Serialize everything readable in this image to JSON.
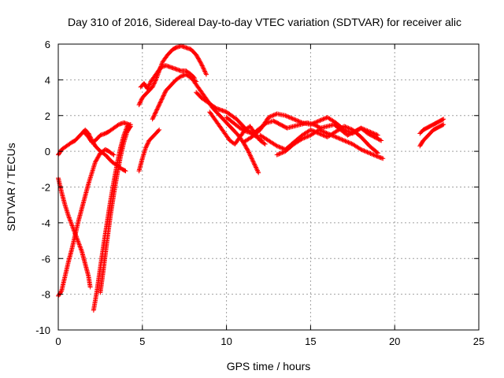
{
  "chart_data": {
    "type": "scatter",
    "title": "Day 310 of 2016, Sidereal Day-to-day VTEC variation (SDTVAR) for receiver alic",
    "xlabel": "GPS time / hours",
    "ylabel": "SDTVAR / TECUs",
    "xlim": [
      0,
      25
    ],
    "ylim": [
      -10,
      6
    ],
    "xticks": [
      "0",
      "5",
      "10",
      "15",
      "20",
      "25"
    ],
    "yticks": [
      "-10",
      "-8",
      "-6",
      "-4",
      "-2",
      "0",
      "2",
      "4",
      "6"
    ],
    "grid": true,
    "legend": "none",
    "marker": "plus",
    "color": "#ff0000",
    "series": [
      {
        "x": [
          0,
          0.2,
          0.5,
          0.8,
          1.0,
          1.3,
          1.6,
          1.8,
          2.0,
          2.2,
          2.5,
          2.8,
          3.0,
          3.2,
          3.5,
          3.8,
          4.0
        ],
        "y": [
          -0.2,
          0.1,
          0.3,
          0.5,
          0.6,
          0.9,
          1.2,
          1.0,
          0.6,
          0.3,
          0.0,
          -0.2,
          -0.4,
          -0.6,
          -0.8,
          -1.0,
          -1.1
        ]
      },
      {
        "x": [
          1.5,
          1.8,
          2.0,
          2.2,
          2.5,
          2.8,
          3.0,
          3.3,
          3.6,
          3.9,
          4.2
        ],
        "y": [
          1.1,
          0.8,
          0.5,
          0.6,
          0.9,
          1.0,
          1.1,
          1.3,
          1.5,
          1.6,
          1.5
        ]
      },
      {
        "x": [
          0,
          0.2,
          0.4,
          0.6,
          0.8,
          1.0,
          1.2,
          1.4,
          1.6,
          1.8,
          1.9
        ],
        "y": [
          -1.5,
          -2.3,
          -3.0,
          -3.6,
          -4.1,
          -4.6,
          -5.1,
          -5.6,
          -6.3,
          -7.0,
          -7.6
        ]
      },
      {
        "x": [
          0,
          0.2,
          0.4,
          0.6,
          0.8,
          1.0,
          1.2,
          1.4,
          1.6,
          1.8,
          2.0,
          2.2,
          2.5,
          2.8,
          3.0,
          3.3
        ],
        "y": [
          -8.1,
          -7.8,
          -7.0,
          -6.2,
          -5.5,
          -4.7,
          -3.9,
          -3.2,
          -2.5,
          -1.8,
          -1.2,
          -0.6,
          -0.1,
          0.1,
          0.0,
          -0.2
        ]
      },
      {
        "x": [
          2.1,
          2.3,
          2.5,
          2.7,
          2.9,
          3.1,
          3.3,
          3.5,
          3.7,
          3.9,
          4.1,
          4.3
        ],
        "y": [
          -8.9,
          -7.8,
          -6.5,
          -5.2,
          -4.0,
          -2.8,
          -1.7,
          -0.7,
          0.2,
          0.9,
          1.4,
          1.5
        ]
      },
      {
        "x": [
          2.5,
          2.7,
          2.9,
          3.1,
          3.3,
          3.5,
          3.7,
          3.9,
          4.1,
          4.3
        ],
        "y": [
          -7.9,
          -6.5,
          -5.0,
          -3.6,
          -2.4,
          -1.3,
          -0.3,
          0.5,
          1.1,
          1.4
        ]
      },
      {
        "x": [
          4.8,
          5.0,
          5.2,
          5.4,
          5.6,
          5.8,
          6.0
        ],
        "y": [
          -1.1,
          -0.4,
          0.2,
          0.6,
          0.8,
          1.0,
          1.2
        ]
      },
      {
        "x": [
          4.8,
          5.0,
          5.3,
          5.6,
          5.8,
          6.0,
          6.2,
          6.5,
          6.8,
          7.0,
          7.3,
          7.6,
          7.9,
          8.2,
          8.5,
          8.8
        ],
        "y": [
          2.6,
          3.0,
          3.3,
          3.6,
          4.0,
          4.5,
          5.0,
          5.4,
          5.7,
          5.8,
          5.9,
          5.8,
          5.7,
          5.4,
          4.9,
          4.3
        ]
      },
      {
        "x": [
          4.9,
          5.1,
          5.3,
          5.5,
          5.8,
          6.1,
          6.4,
          6.7,
          7.0,
          7.3,
          7.6,
          7.9,
          8.1
        ],
        "y": [
          3.6,
          3.8,
          3.5,
          3.9,
          4.3,
          4.7,
          4.8,
          4.7,
          4.6,
          4.5,
          4.5,
          4.3,
          4.1
        ]
      },
      {
        "x": [
          5.6,
          5.8,
          6.0,
          6.2,
          6.4,
          6.7,
          7.0,
          7.3,
          7.6,
          7.9,
          8.2
        ],
        "y": [
          1.8,
          2.2,
          2.6,
          3.0,
          3.4,
          3.7,
          4.0,
          4.2,
          4.3,
          4.1,
          3.9
        ]
      },
      {
        "x": [
          8.0,
          8.3,
          8.6,
          8.9,
          9.2,
          9.5,
          9.8,
          10.1,
          10.4,
          10.7,
          11.0,
          11.3,
          11.6,
          11.9
        ],
        "y": [
          4.0,
          3.6,
          3.2,
          2.8,
          2.4,
          2.1,
          1.8,
          1.5,
          1.2,
          0.9,
          0.5,
          0.0,
          -0.6,
          -1.2
        ]
      },
      {
        "x": [
          8.2,
          8.5,
          8.8,
          9.1,
          9.4,
          9.7,
          10.0,
          10.3,
          10.6,
          10.9,
          11.2,
          11.5,
          11.8,
          12.1
        ],
        "y": [
          3.3,
          3.0,
          2.8,
          2.6,
          2.4,
          2.3,
          2.2,
          2.0,
          1.8,
          1.5,
          1.2,
          1.0,
          0.8,
          0.6
        ]
      },
      {
        "x": [
          9.0,
          9.3,
          9.6,
          9.9,
          10.2,
          10.5,
          10.8,
          11.1,
          11.4,
          11.7,
          12.0,
          12.3
        ],
        "y": [
          2.2,
          1.8,
          1.4,
          1.0,
          0.6,
          0.4,
          0.8,
          1.2,
          1.4,
          1.0,
          0.6,
          0.4
        ]
      },
      {
        "x": [
          10.0,
          10.4,
          10.8,
          11.2,
          11.6,
          12.0,
          12.4,
          12.8,
          13.2,
          13.6,
          14.0,
          14.4,
          14.8,
          15.2,
          15.6,
          16.0,
          16.4,
          16.8,
          17.2,
          17.6,
          18.0,
          18.4,
          18.8,
          19.2
        ],
        "y": [
          1.9,
          1.6,
          1.3,
          1.1,
          1.0,
          1.3,
          1.6,
          1.7,
          1.5,
          1.3,
          1.4,
          1.5,
          1.6,
          1.5,
          1.3,
          1.4,
          1.5,
          1.2,
          0.9,
          1.1,
          1.3,
          1.0,
          0.8,
          0.6
        ]
      },
      {
        "x": [
          11.0,
          11.5,
          12.0,
          12.5,
          13.0,
          13.5,
          14.0,
          14.5,
          15.0,
          15.5,
          16.0,
          16.5,
          17.0,
          17.5,
          18.0,
          18.5,
          19.0
        ],
        "y": [
          0.5,
          0.8,
          1.2,
          1.9,
          2.1,
          2.0,
          1.8,
          1.6,
          1.5,
          1.7,
          1.9,
          1.6,
          1.2,
          1.0,
          1.3,
          1.1,
          0.9
        ]
      },
      {
        "x": [
          12.0,
          12.5,
          13.0,
          13.5,
          14.0,
          14.5,
          15.0,
          15.5,
          16.0,
          16.5,
          17.0,
          17.5,
          18.0,
          18.5,
          19.0
        ],
        "y": [
          0.9,
          0.6,
          0.3,
          0.1,
          0.5,
          0.9,
          1.2,
          1.0,
          0.8,
          1.1,
          1.4,
          1.2,
          0.8,
          0.3,
          -0.1
        ]
      },
      {
        "x": [
          13.0,
          13.5,
          14.0,
          14.5,
          15.0,
          15.5,
          16.0,
          16.5,
          17.0,
          17.5,
          18.0,
          18.5,
          19.0,
          19.3
        ],
        "y": [
          -0.2,
          0.0,
          0.4,
          0.7,
          0.9,
          1.2,
          1.0,
          0.8,
          0.6,
          0.4,
          0.1,
          -0.1,
          -0.3,
          -0.4
        ]
      },
      {
        "x": [
          21.5,
          21.7,
          21.9,
          22.1,
          22.3,
          22.5,
          22.7,
          22.9
        ],
        "y": [
          0.3,
          0.6,
          0.8,
          1.0,
          1.2,
          1.3,
          1.4,
          1.5
        ]
      },
      {
        "x": [
          21.5,
          21.7,
          21.9,
          22.1,
          22.3,
          22.5,
          22.7,
          22.9
        ],
        "y": [
          1.0,
          1.2,
          1.3,
          1.4,
          1.5,
          1.6,
          1.7,
          1.8
        ]
      }
    ]
  }
}
